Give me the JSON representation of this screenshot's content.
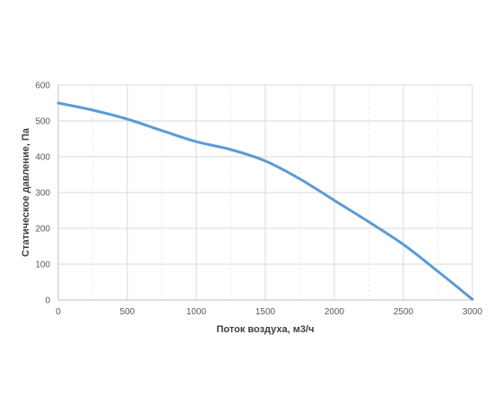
{
  "chart_data": {
    "type": "line",
    "title": "",
    "xlabel": "Поток воздуха, м3/ч",
    "ylabel": "Статическое давление, Па",
    "xlim": [
      0,
      3000
    ],
    "ylim": [
      0,
      600
    ],
    "x_ticks": [
      0,
      500,
      1000,
      1500,
      2000,
      2500,
      3000
    ],
    "y_ticks": [
      0,
      100,
      200,
      300,
      400,
      500,
      600
    ],
    "x_minor_ticks": [
      250,
      750,
      1250,
      1750,
      2250,
      2750
    ],
    "grid": true,
    "legend": "none",
    "series": [
      {
        "color": "#5b9bd5",
        "x": [
          0,
          250,
          500,
          750,
          1000,
          1250,
          1500,
          1750,
          2000,
          2250,
          2500,
          2750,
          3000
        ],
        "y": [
          550,
          530,
          505,
          473,
          442,
          420,
          388,
          338,
          278,
          218,
          155,
          80,
          2
        ]
      }
    ]
  }
}
